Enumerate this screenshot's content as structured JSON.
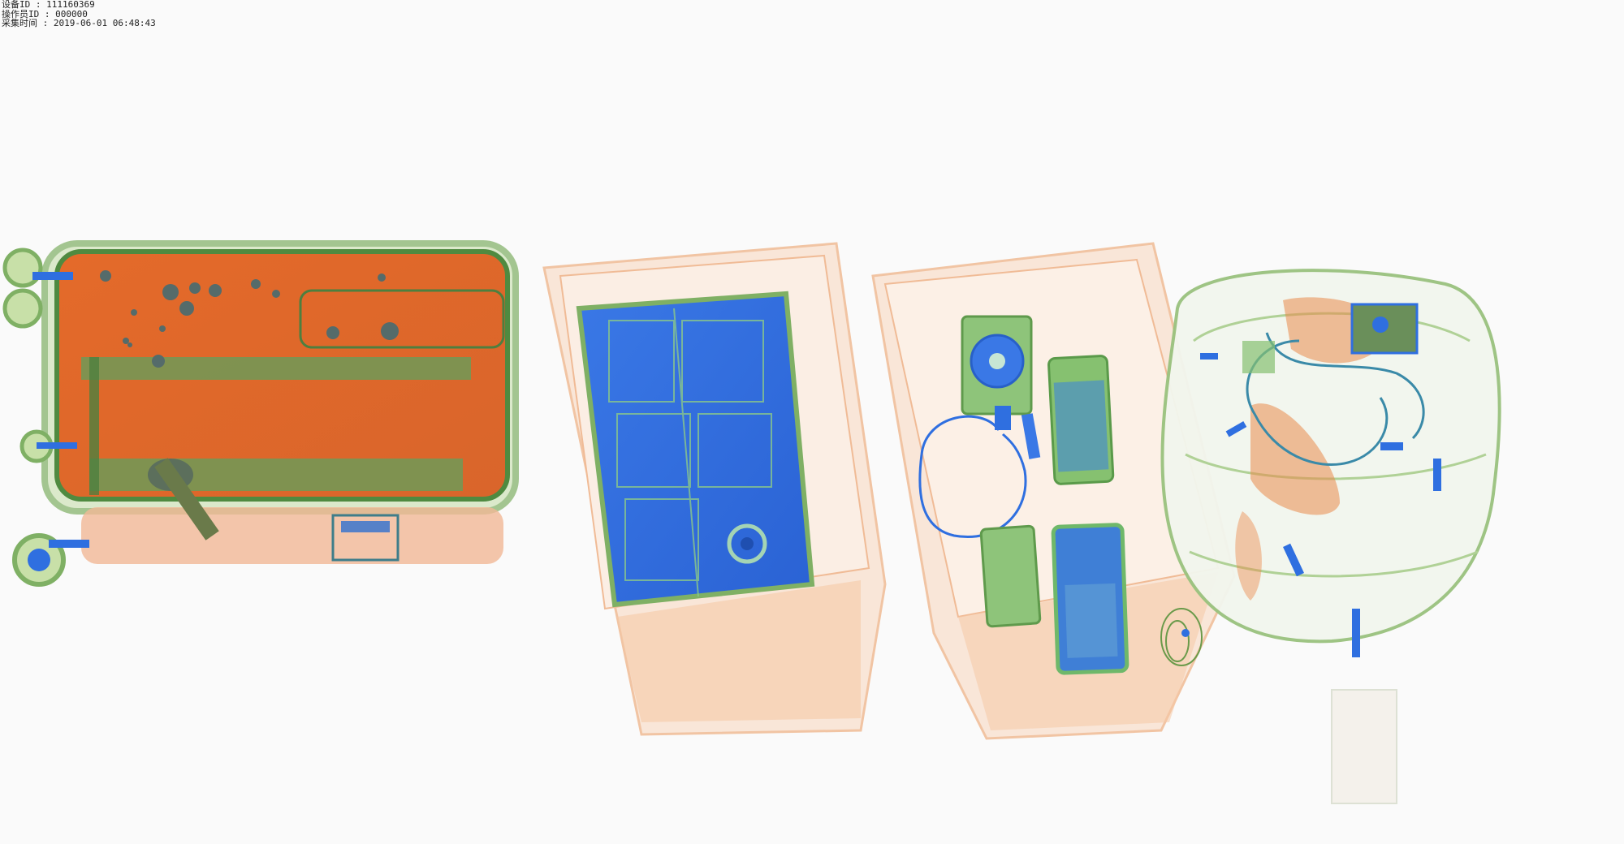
{
  "header": {
    "device_id_line": "设备ID : 111160369",
    "operator_id_line": "操作员ID : 000000",
    "capture_time_line": "采集时间 : 2019-06-01 06:48:43"
  },
  "colors": {
    "organic": "#e8773a",
    "organic_light": "#f4c7a4",
    "mixed": "#78b06a",
    "metal": "#2f6fe0",
    "background": "#fafafa"
  },
  "scan_items": [
    {
      "name": "suitcase"
    },
    {
      "name": "tray-with-laptop"
    },
    {
      "name": "tray-with-devices"
    },
    {
      "name": "backpack"
    }
  ]
}
